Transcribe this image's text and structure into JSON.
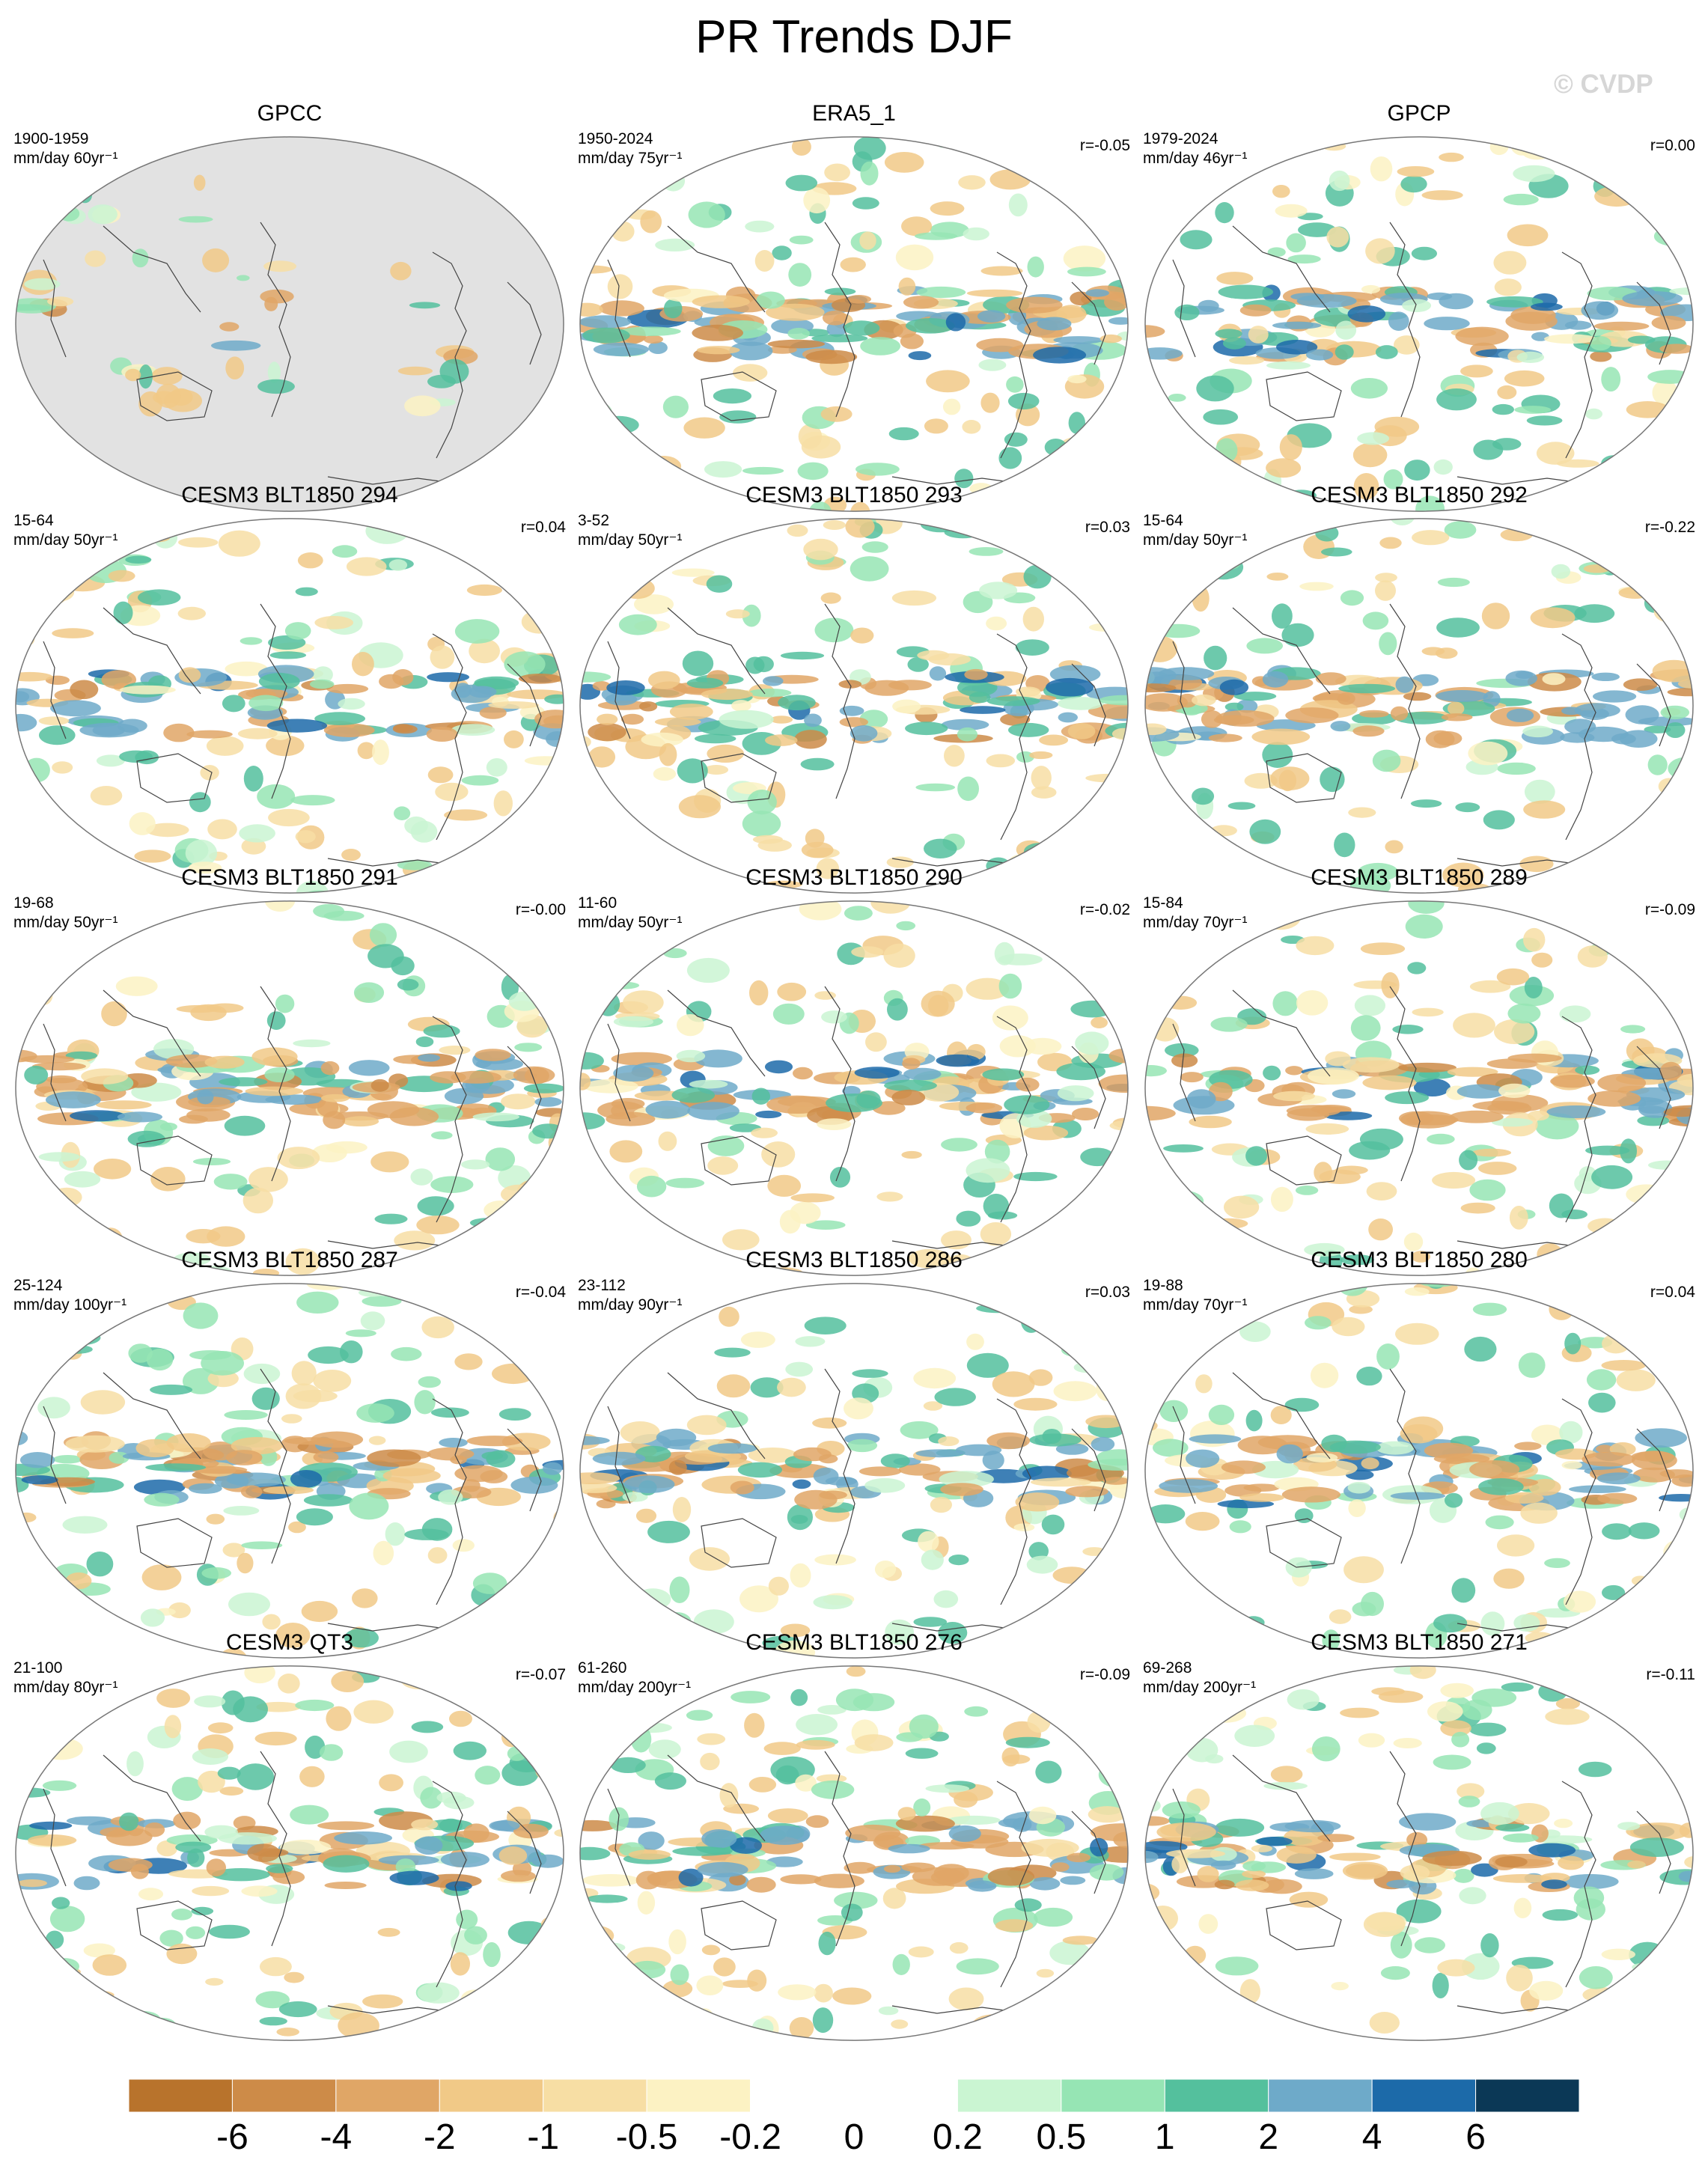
{
  "title": "PR Trends DJF",
  "watermark": "© CVDP",
  "panels": [
    {
      "title": "GPCC",
      "years": "1900-1959",
      "units": "mm/day 60yr⁻¹",
      "corr": "",
      "type": "gpcc",
      "seed": 11
    },
    {
      "title": "ERA5_1",
      "years": "1950-2024",
      "units": "mm/day 75yr⁻¹",
      "corr": "r=-0.05",
      "type": "full",
      "seed": 23
    },
    {
      "title": "GPCP",
      "years": "1979-2024",
      "units": "mm/day 46yr⁻¹",
      "corr": "r=0.00",
      "type": "full",
      "seed": 37
    },
    {
      "title": "CESM3 BLT1850 294",
      "years": "15-64",
      "units": "mm/day 50yr⁻¹",
      "corr": "r=0.04",
      "type": "full",
      "seed": 41
    },
    {
      "title": "CESM3 BLT1850 293",
      "years": "3-52",
      "units": "mm/day 50yr⁻¹",
      "corr": "r=0.03",
      "type": "full",
      "seed": 53
    },
    {
      "title": "CESM3 BLT1850 292",
      "years": "15-64",
      "units": "mm/day 50yr⁻¹",
      "corr": "r=-0.22",
      "type": "full",
      "seed": 67
    },
    {
      "title": "CESM3 BLT1850 291",
      "years": "19-68",
      "units": "mm/day 50yr⁻¹",
      "corr": "r=-0.00",
      "type": "full",
      "seed": 71
    },
    {
      "title": "CESM3 BLT1850 290",
      "years": "11-60",
      "units": "mm/day 50yr⁻¹",
      "corr": "r=-0.02",
      "type": "full",
      "seed": 83
    },
    {
      "title": "CESM3 BLT1850 289",
      "years": "15-84",
      "units": "mm/day 70yr⁻¹",
      "corr": "r=-0.09",
      "type": "full",
      "seed": 97
    },
    {
      "title": "CESM3 BLT1850 287",
      "years": "25-124",
      "units": "mm/day 100yr⁻¹",
      "corr": "r=-0.04",
      "type": "full",
      "seed": 101
    },
    {
      "title": "CESM3 BLT1850 286",
      "years": "23-112",
      "units": "mm/day 90yr⁻¹",
      "corr": "r=0.03",
      "type": "full",
      "seed": 113
    },
    {
      "title": "CESM3 BLT1850 280",
      "years": "19-88",
      "units": "mm/day 70yr⁻¹",
      "corr": "r=0.04",
      "type": "full",
      "seed": 127
    },
    {
      "title": "CESM3 QT3",
      "years": "21-100",
      "units": "mm/day 80yr⁻¹",
      "corr": "r=-0.07",
      "type": "full",
      "seed": 131
    },
    {
      "title": "CESM3 BLT1850 276",
      "years": "61-260",
      "units": "mm/day 200yr⁻¹",
      "corr": "r=-0.09",
      "type": "full",
      "seed": 149
    },
    {
      "title": "CESM3 BLT1850 271",
      "years": "69-268",
      "units": "mm/day 200yr⁻¹",
      "corr": "r=-0.11",
      "type": "full",
      "seed": 157
    }
  ],
  "colorbar": {
    "labels": [
      "-6",
      "-4",
      "-2",
      "-1",
      "-0.5",
      "-0.2",
      "0",
      "0.2",
      "0.5",
      "1",
      "2",
      "4",
      "6"
    ],
    "colors": [
      "#b8732c",
      "#cd8b48",
      "#e0a666",
      "#f1c987",
      "#f7dea4",
      "#fcf2c3",
      "#ffffff",
      "#ffffff",
      "#caf5d2",
      "#96e5b4",
      "#54c09d",
      "#6eaac9",
      "#1c6aa9",
      "#0b3856"
    ]
  },
  "land_color": "#e2e2e2",
  "chart_data": {
    "type": "heatmap",
    "title": "PR Trends DJF",
    "panels": [
      "GPCC",
      "ERA5_1",
      "GPCP",
      "CESM3 BLT1850 294",
      "CESM3 BLT1850 293",
      "CESM3 BLT1850 292",
      "CESM3 BLT1850 291",
      "CESM3 BLT1850 290",
      "CESM3 BLT1850 289",
      "CESM3 BLT1850 287",
      "CESM3 BLT1850 286",
      "CESM3 BLT1850 280",
      "CESM3 QT3",
      "CESM3 BLT1850 276",
      "CESM3 BLT1850 271"
    ],
    "pattern_correlations": [
      null,
      -0.05,
      0.0,
      0.04,
      0.03,
      -0.22,
      -0.0,
      -0.02,
      -0.09,
      -0.04,
      0.03,
      0.04,
      -0.07,
      -0.09,
      -0.11
    ],
    "levels": [
      -6,
      -4,
      -2,
      -1,
      -0.5,
      -0.2,
      0,
      0.2,
      0.5,
      1,
      2,
      4,
      6
    ]
  }
}
